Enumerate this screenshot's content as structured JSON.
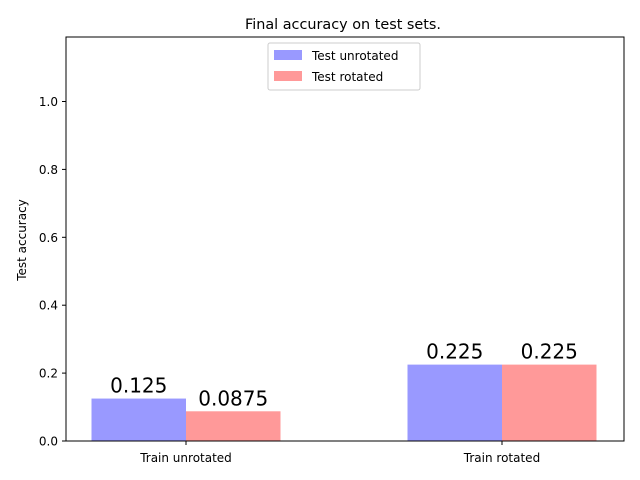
{
  "chart_data": {
    "type": "bar",
    "title": "Final accuracy on test sets.",
    "xlabel": "",
    "ylabel": "Test accuracy",
    "categories": [
      "Train unrotated",
      "Train rotated"
    ],
    "series": [
      {
        "name": "Test unrotated",
        "values": [
          0.125,
          0.225
        ],
        "labels": [
          "0.125",
          "0.225"
        ],
        "color": "#9999ff"
      },
      {
        "name": "Test rotated",
        "values": [
          0.0875,
          0.225
        ],
        "labels": [
          "0.0875",
          "0.225"
        ],
        "color": "#ff9999"
      }
    ],
    "ylim": [
      0,
      1.19
    ],
    "yticks": [
      0.0,
      0.2,
      0.4,
      0.6,
      0.8,
      1.0
    ],
    "ytick_labels": [
      "0.0",
      "0.2",
      "0.4",
      "0.6",
      "0.8",
      "1.0"
    ],
    "grid": false,
    "legend_position": "top-center"
  }
}
